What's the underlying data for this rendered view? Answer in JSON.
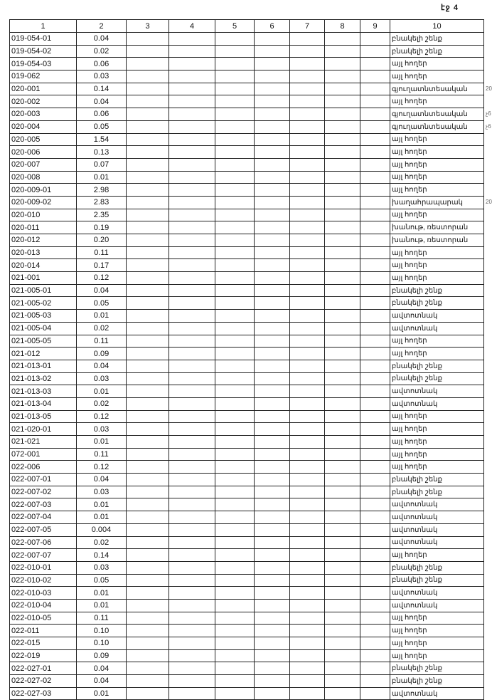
{
  "page_label": "էջ 4",
  "headers": [
    "1",
    "2",
    "3",
    "4",
    "5",
    "6",
    "7",
    "8",
    "9",
    "10"
  ],
  "rows": [
    [
      "019-054-01",
      "0.04",
      "բնակելի շենք"
    ],
    [
      "019-054-02",
      "0.02",
      "բնակելի շենք"
    ],
    [
      "019-054-03",
      "0.06",
      "այլ հողեր"
    ],
    [
      "019-062",
      "0.03",
      "այլ հողեր"
    ],
    [
      "020-001",
      "0.14",
      "գյուղատնտեսական"
    ],
    [
      "020-002",
      "0.04",
      "այլ հողեր"
    ],
    [
      "020-003",
      "0.06",
      "գյուղատնտեսական"
    ],
    [
      "020-004",
      "0.05",
      "գյուղատնտեսական"
    ],
    [
      "020-005",
      "1.54",
      "այլ հողեր"
    ],
    [
      "020-006",
      "0.13",
      "այլ հողեր"
    ],
    [
      "020-007",
      "0.07",
      "այլ հողեր"
    ],
    [
      "020-008",
      "0.01",
      "այլ հողեր"
    ],
    [
      "020-009-01",
      "2.98",
      "այլ հողեր"
    ],
    [
      "020-009-02",
      "2.83",
      "խաղահրապարակ"
    ],
    [
      "020-010",
      "2.35",
      "այլ հողեր"
    ],
    [
      "020-011",
      "0.19",
      "խանութ, ռեստորան"
    ],
    [
      "020-012",
      "0.20",
      "խանութ, ռեստորան"
    ],
    [
      "020-013",
      "0.11",
      "այլ հողեր"
    ],
    [
      "020-014",
      "0.17",
      "այլ հողեր"
    ],
    [
      "021-001",
      "0.12",
      "այլ հողեր"
    ],
    [
      "021-005-01",
      "0.04",
      "բնակելի շենք"
    ],
    [
      "021-005-02",
      "0.05",
      "բնակելի շենք"
    ],
    [
      "021-005-03",
      "0.01",
      "ավտոտնակ"
    ],
    [
      "021-005-04",
      "0.02",
      "ավտոտնակ"
    ],
    [
      "021-005-05",
      "0.11",
      "այլ հողեր"
    ],
    [
      "021-012",
      "0.09",
      "այլ հողեր"
    ],
    [
      "021-013-01",
      "0.04",
      "բնակելի շենք"
    ],
    [
      "021-013-02",
      "0.03",
      "բնակելի շենք"
    ],
    [
      "021-013-03",
      "0.01",
      "ավտոտնակ"
    ],
    [
      "021-013-04",
      "0.02",
      "ավտոտնակ"
    ],
    [
      "021-013-05",
      "0.12",
      "այլ հողեր"
    ],
    [
      "021-020-01",
      "0.03",
      "այլ հողեր"
    ],
    [
      "021-021",
      "0.01",
      "այլ հողեր"
    ],
    [
      "072-001",
      "0.11",
      "այլ հողեր"
    ],
    [
      "022-006",
      "0.12",
      "այլ հողեր"
    ],
    [
      "022-007-01",
      "0.04",
      "բնակելի շենք"
    ],
    [
      "022-007-02",
      "0.03",
      "բնակելի շենք"
    ],
    [
      "022-007-03",
      "0.01",
      "ավտոտնակ"
    ],
    [
      "022-007-04",
      "0.01",
      "ավտոտնակ"
    ],
    [
      "022-007-05",
      "0.004",
      "ավտոտնակ"
    ],
    [
      "022-007-06",
      "0.02",
      "ավտոտնակ"
    ],
    [
      "022-007-07",
      "0.14",
      "այլ հողեր"
    ],
    [
      "022-010-01",
      "0.03",
      "բնակելի շենք"
    ],
    [
      "022-010-02",
      "0.05",
      "բնակելի շենք"
    ],
    [
      "022-010-03",
      "0.01",
      "ավտոտնակ"
    ],
    [
      "022-010-04",
      "0.01",
      "ավտոտնակ"
    ],
    [
      "022-010-05",
      "0.11",
      "այլ հողեր"
    ],
    [
      "022-011",
      "0.10",
      "այլ հողեր"
    ],
    [
      "022-015",
      "0.10",
      "այլ հողեր"
    ],
    [
      "022-019",
      "0.09",
      "այլ հողեր"
    ],
    [
      "022-027-01",
      "0.04",
      "բնակելի շենք"
    ],
    [
      "022-027-02",
      "0.04",
      "բնակելի շենք"
    ],
    [
      "022-027-03",
      "0.01",
      "ավտոտնակ"
    ]
  ],
  "margin_notes": [
    {
      "row": 4,
      "text": "20"
    },
    {
      "row": 6,
      "text": "չ6"
    },
    {
      "row": 7,
      "text": "չ6"
    },
    {
      "row": 13,
      "text": "20"
    }
  ]
}
